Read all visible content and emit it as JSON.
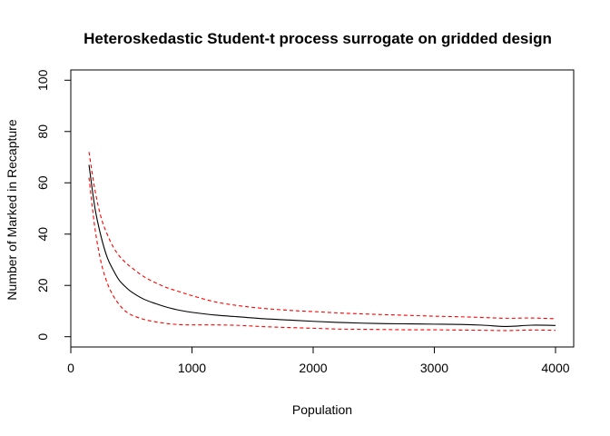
{
  "chart_data": {
    "type": "line",
    "title": "Heteroskedastic Student-t process surrogate on gridded design",
    "xlabel": "Population",
    "ylabel": "Number of Marked in Recapture",
    "xlim": [
      0,
      4150
    ],
    "ylim": [
      -4,
      104
    ],
    "x_ticks": [
      0,
      1000,
      2000,
      3000,
      4000
    ],
    "x_tick_labels": [
      "0",
      "1000",
      "2000",
      "3000",
      "4000"
    ],
    "y_ticks": [
      0,
      20,
      40,
      60,
      80,
      100
    ],
    "y_tick_labels": [
      "0",
      "20",
      "40",
      "60",
      "80",
      "100"
    ],
    "grid": false,
    "legend": "none",
    "x": [
      150,
      200,
      250,
      300,
      350,
      400,
      450,
      500,
      600,
      700,
      800,
      900,
      1000,
      1200,
      1400,
      1600,
      1800,
      2000,
      2200,
      2400,
      2600,
      2800,
      3000,
      3200,
      3400,
      3600,
      3800,
      4000
    ],
    "series": [
      {
        "style": "solid",
        "color": "#000000",
        "values": [
          67,
          50,
          39,
          31,
          26,
          22,
          19.5,
          17.5,
          14.7,
          12.9,
          11.4,
          10.3,
          9.5,
          8.4,
          7.7,
          7.0,
          6.5,
          6.0,
          5.6,
          5.3,
          5.1,
          5.0,
          4.9,
          4.8,
          4.5,
          4.0,
          4.5,
          4.4
        ]
      },
      {
        "style": "dashed",
        "color": "#ff0000",
        "values": [
          72,
          57,
          46.5,
          40,
          35,
          31.5,
          29,
          27,
          23.5,
          21,
          19,
          17.5,
          16,
          13.5,
          12,
          11,
          10.3,
          9.8,
          9.3,
          8.9,
          8.6,
          8.3,
          8.0,
          7.8,
          7.5,
          7.2,
          7.3,
          7.0
        ]
      },
      {
        "style": "dashed",
        "color": "#ff0000",
        "values": [
          62,
          42,
          29,
          21,
          16,
          12.5,
          10,
          8.5,
          6.8,
          5.8,
          5.1,
          4.7,
          4.6,
          4.6,
          4.4,
          3.9,
          3.6,
          3.3,
          3.0,
          2.9,
          2.8,
          2.7,
          2.7,
          2.6,
          2.5,
          2.4,
          2.6,
          2.5
        ]
      }
    ]
  }
}
